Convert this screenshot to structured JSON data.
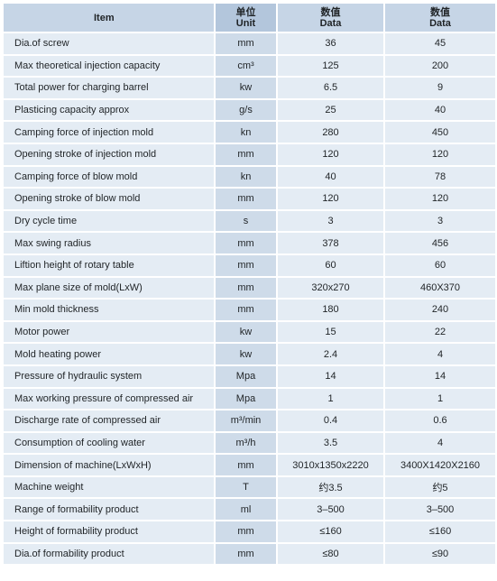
{
  "header": {
    "item": "Item",
    "unit_cn": "单位",
    "unit_en": "Unit",
    "v1_cn": "数值",
    "v1_en": "Data",
    "v2_cn": "数值",
    "v2_en": "Data"
  },
  "rows": [
    {
      "item": "Dia.of screw",
      "unit": "mm",
      "v1": "36",
      "v2": "45"
    },
    {
      "item": "Max theoretical injection capacity",
      "unit": "cm³",
      "v1": "125",
      "v2": "200"
    },
    {
      "item": "Total power for charging barrel",
      "unit": "kw",
      "v1": "6.5",
      "v2": "9"
    },
    {
      "item": "Plasticing capacity approx",
      "unit": "g/s",
      "v1": "25",
      "v2": "40"
    },
    {
      "item": "Camping force of injection mold",
      "unit": "kn",
      "v1": "280",
      "v2": "450"
    },
    {
      "item": "Opening stroke of injection mold",
      "unit": "mm",
      "v1": "120",
      "v2": "120"
    },
    {
      "item": "Camping force of blow mold",
      "unit": "kn",
      "v1": "40",
      "v2": "78"
    },
    {
      "item": "Opening stroke of blow mold",
      "unit": "mm",
      "v1": "120",
      "v2": "120"
    },
    {
      "item": "Dry cycle time",
      "unit": "s",
      "v1": "3",
      "v2": "3"
    },
    {
      "item": "Max swing radius",
      "unit": "mm",
      "v1": "378",
      "v2": "456"
    },
    {
      "item": "Liftion height of rotary table",
      "unit": "mm",
      "v1": "60",
      "v2": "60"
    },
    {
      "item": "Max plane size of mold(LxW)",
      "unit": "mm",
      "v1": "320x270",
      "v2": "460X370"
    },
    {
      "item": "Min mold thickness",
      "unit": "mm",
      "v1": "180",
      "v2": "240"
    },
    {
      "item": "Motor power",
      "unit": "kw",
      "v1": "15",
      "v2": "22"
    },
    {
      "item": "Mold heating power",
      "unit": "kw",
      "v1": "2.4",
      "v2": "4"
    },
    {
      "item": "Pressure of hydraulic system",
      "unit": "Mpa",
      "v1": "14",
      "v2": "14"
    },
    {
      "item": "Max working pressure of compressed air",
      "unit": "Mpa",
      "v1": "1",
      "v2": "1"
    },
    {
      "item": "Discharge rate of compressed air",
      "unit": "m³/min",
      "v1": "0.4",
      "v2": "0.6"
    },
    {
      "item": "Consumption of cooling water",
      "unit": "m³/h",
      "v1": "3.5",
      "v2": "4"
    },
    {
      "item": "Dimension of machine(LxWxH)",
      "unit": "mm",
      "v1": "3010x1350x2220",
      "v2": "3400X1420X2160"
    },
    {
      "item": "Machine weight",
      "unit": "T",
      "v1": "约3.5",
      "v2": "约5"
    },
    {
      "item": "Range of formability product",
      "unit": "ml",
      "v1": "3–500",
      "v2": "3–500"
    },
    {
      "item": "Height of formability product",
      "unit": "mm",
      "v1": "≤160",
      "v2": "≤160"
    },
    {
      "item": "Dia.of formability product",
      "unit": "mm",
      "v1": "≤80",
      "v2": "≤90"
    }
  ]
}
